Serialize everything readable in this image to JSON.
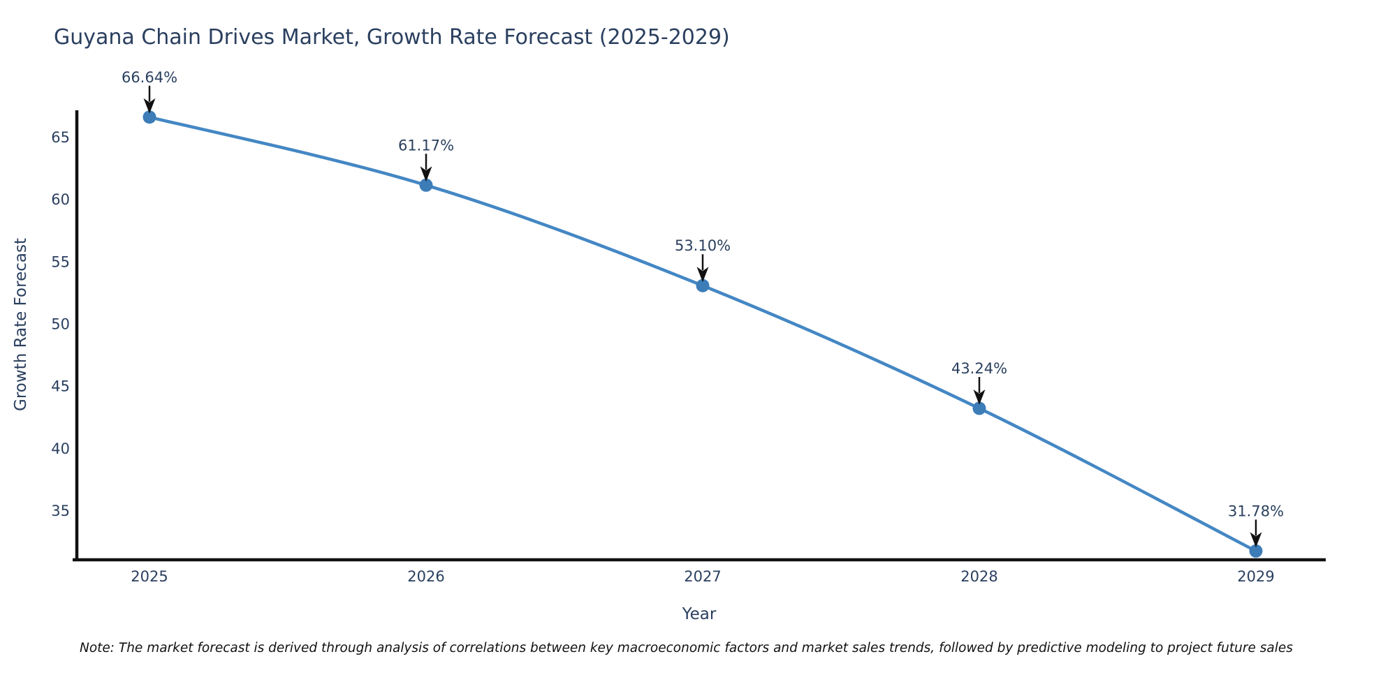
{
  "page": {
    "note": "Note: The market forecast is derived through analysis of correlations between key macroeconomic factors and market sales trends, followed by predictive modeling to project future sales"
  },
  "chart_data": {
    "type": "line",
    "title": "Guyana Chain Drives Market, Growth Rate Forecast (2025-2029)",
    "xlabel": "Year",
    "ylabel": "Growth Rate Forecast",
    "categories": [
      "2025",
      "2026",
      "2027",
      "2028",
      "2029"
    ],
    "values": [
      66.64,
      61.17,
      53.1,
      43.24,
      31.78
    ],
    "point_labels": [
      "66.64%",
      "61.17%",
      "53.10%",
      "43.24%",
      "31.78%"
    ],
    "series": [
      {
        "name": "Growth Rate Forecast",
        "values": [
          66.64,
          61.17,
          53.1,
          43.24,
          31.78
        ]
      }
    ],
    "y_ticks": [
      35,
      40,
      45,
      50,
      55,
      60,
      65
    ],
    "ylim": [
      31.1,
      67.2
    ],
    "xlim": [
      2024.72,
      2029.25
    ],
    "grid": false,
    "legend_position": "none",
    "line_style": "smooth-spline",
    "annotations_have_arrows": true,
    "colors": {
      "line": "#4487c4",
      "marker": "#3c7db8",
      "axis": "#111111",
      "text": "#2a3f5f",
      "annotation_text": "#2a3f5f",
      "annotation_arrow": "#111111",
      "note_text": "#111111",
      "background": "#ffffff"
    }
  }
}
